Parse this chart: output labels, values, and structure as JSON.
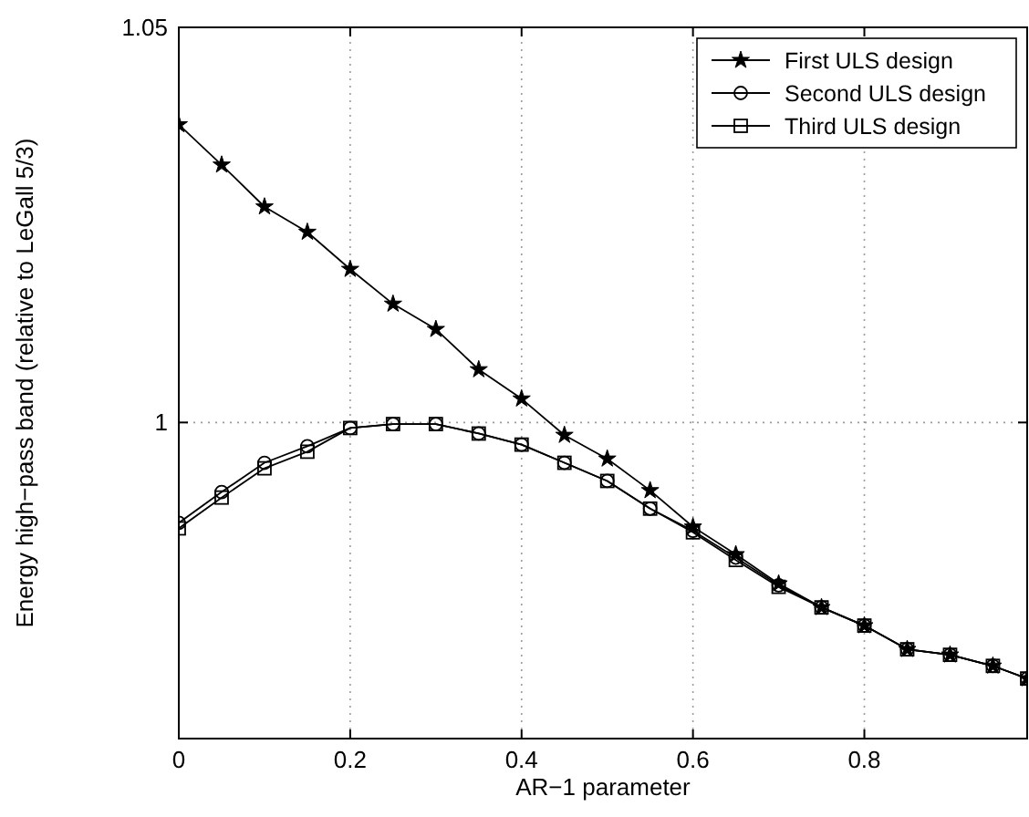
{
  "chart_data": {
    "type": "line",
    "xlabel": "AR−1 parameter",
    "ylabel": "Energy high−pass band (relative to LeGall 5/3)",
    "x": [
      0,
      0.05,
      0.1,
      0.15,
      0.2,
      0.25,
      0.3,
      0.35,
      0.4,
      0.45,
      0.5,
      0.55,
      0.6,
      0.65,
      0.7,
      0.75,
      0.8,
      0.85,
      0.9,
      0.95,
      0.99
    ],
    "series": [
      {
        "name": "First ULS design",
        "color": "#000000",
        "marker": "star",
        "values": [
          1.0377,
          1.0326,
          1.0273,
          1.0241,
          1.0194,
          1.015,
          1.0118,
          1.0067,
          1.003,
          0.9984,
          0.9954,
          0.9914,
          0.9868,
          0.9833,
          0.9796,
          0.9766,
          0.9743,
          0.9713,
          0.9706,
          0.9692,
          0.9676
        ]
      },
      {
        "name": "Second ULS design",
        "color": "#000000",
        "marker": "circle",
        "values": [
          0.9873,
          0.9912,
          0.9949,
          0.997,
          0.9993,
          0.9998,
          0.9998,
          0.9986,
          0.9972,
          0.9949,
          0.9926,
          0.9891,
          0.9863,
          0.9829,
          0.9794,
          0.9766,
          0.9743,
          0.9713,
          0.9706,
          0.9692,
          0.9676
        ]
      },
      {
        "name": "Third ULS design",
        "color": "#000000",
        "marker": "square",
        "values": [
          0.9866,
          0.9905,
          0.9942,
          0.9963,
          0.9993,
          0.9998,
          0.9998,
          0.9986,
          0.9972,
          0.9949,
          0.9926,
          0.9891,
          0.9861,
          0.9826,
          0.9792,
          0.9766,
          0.9743,
          0.9713,
          0.9706,
          0.9692,
          0.9676
        ]
      }
    ],
    "xlim": [
      0,
      0.99
    ],
    "xticks": [
      0,
      0.2,
      0.4,
      0.6,
      0.8
    ],
    "ylim": [
      0.96,
      1.05
    ],
    "yticks": [
      1,
      1.05
    ],
    "grid": true,
    "legend": "top right",
    "line_style": "solid"
  }
}
